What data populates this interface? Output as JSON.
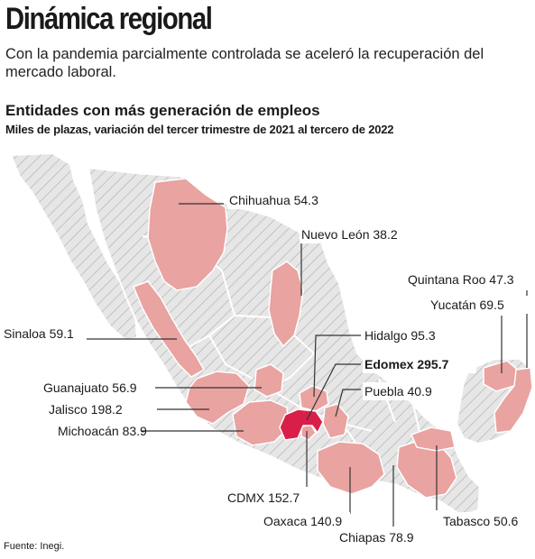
{
  "header": {
    "title": "Dinámica regional",
    "subtitle": "Con la pandemia parcialmente controlada se aceleró la recuperación del mercado laboral."
  },
  "map": {
    "title": "Entidades con más generación de empleos",
    "subtitle": "Miles de plazas, variación del tercer trimestre de 2021 al tercero de 2022",
    "colors": {
      "highlight": "#e9a3a0",
      "top": "#d91f49",
      "other": "#e6e6e6",
      "hatch": "#c2c2c2"
    },
    "states": [
      {
        "id": "chihuahua",
        "label": "Chihuahua 54.3",
        "value": 54.3
      },
      {
        "id": "nuevo-leon",
        "label": "Nuevo León 38.2",
        "value": 38.2
      },
      {
        "id": "quintana-roo",
        "label": "Quintana Roo 47.3",
        "value": 47.3
      },
      {
        "id": "yucatan",
        "label": "Yucatán 69.5",
        "value": 69.5
      },
      {
        "id": "sinaloa",
        "label": "Sinaloa 59.1",
        "value": 59.1
      },
      {
        "id": "hidalgo",
        "label": "Hidalgo 95.3",
        "value": 95.3
      },
      {
        "id": "edomex",
        "label": "Edomex 295.7",
        "value": 295.7
      },
      {
        "id": "guanajuato",
        "label": "Guanajuato 56.9",
        "value": 56.9
      },
      {
        "id": "puebla",
        "label": "Puebla 40.9",
        "value": 40.9
      },
      {
        "id": "jalisco",
        "label": "Jalisco 198.2",
        "value": 198.2
      },
      {
        "id": "michoacan",
        "label": "Michoacán 83.9",
        "value": 83.9
      },
      {
        "id": "cdmx",
        "label": "CDMX 152.7",
        "value": 152.7
      },
      {
        "id": "oaxaca",
        "label": "Oaxaca 140.9",
        "value": 140.9
      },
      {
        "id": "tabasco",
        "label": "Tabasco 50.6",
        "value": 50.6
      },
      {
        "id": "chiapas",
        "label": "Chiapas 78.9",
        "value": 78.9
      }
    ]
  },
  "footer": {
    "source": "Fuente: Inegi."
  }
}
